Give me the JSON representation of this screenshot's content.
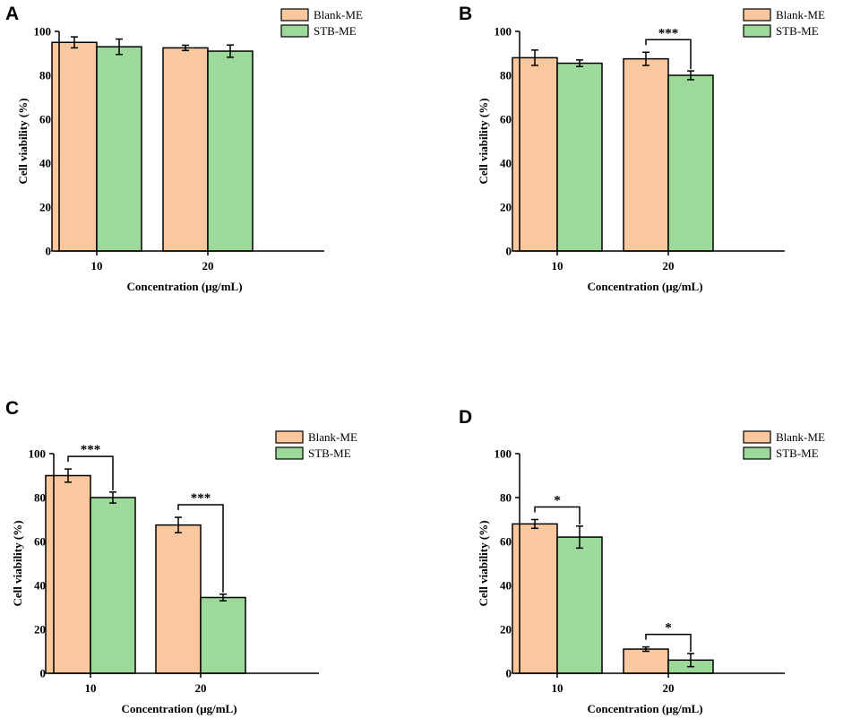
{
  "colors": {
    "blank": "#f9c89f",
    "stb": "#9ed99c",
    "stroke": "#000000"
  },
  "chart_data": [
    {
      "panel": "A",
      "type": "bar",
      "xlabel": "Concentration (μg/mL)",
      "ylabel": "Cell viability (%)",
      "ylim": [
        0,
        100
      ],
      "yticks": [
        "0",
        "20",
        "40",
        "60",
        "80",
        "100"
      ],
      "categories": [
        "10",
        "20"
      ],
      "series": [
        {
          "name": "Blank-ME",
          "values": [
            95,
            92.5
          ],
          "errors": [
            2.5,
            1.2
          ]
        },
        {
          "name": "STB-ME",
          "values": [
            93,
            91
          ],
          "errors": [
            3.5,
            2.8
          ]
        }
      ],
      "significance": []
    },
    {
      "panel": "B",
      "type": "bar",
      "xlabel": "Concentration (μg/mL)",
      "ylabel": "Cell viability (%)",
      "ylim": [
        0,
        100
      ],
      "yticks": [
        "0",
        "20",
        "40",
        "60",
        "80",
        "100"
      ],
      "categories": [
        "10",
        "20"
      ],
      "series": [
        {
          "name": "Blank-ME",
          "values": [
            88,
            87.5
          ],
          "errors": [
            3.5,
            3
          ]
        },
        {
          "name": "STB-ME",
          "values": [
            85.5,
            80
          ],
          "errors": [
            1.5,
            2
          ]
        }
      ],
      "significance": [
        {
          "category": 1,
          "label": "***"
        }
      ]
    },
    {
      "panel": "C",
      "type": "bar",
      "xlabel": "Concentration (μg/mL)",
      "ylabel": "Cell viability (%)",
      "ylim": [
        0,
        100
      ],
      "yticks": [
        "0",
        "20",
        "40",
        "60",
        "80",
        "100"
      ],
      "categories": [
        "10",
        "20"
      ],
      "series": [
        {
          "name": "Blank-ME",
          "values": [
            90,
            67.5
          ],
          "errors": [
            3,
            3.5
          ]
        },
        {
          "name": "STB-ME",
          "values": [
            80,
            34.5
          ],
          "errors": [
            2.5,
            1.5
          ]
        }
      ],
      "significance": [
        {
          "category": 0,
          "label": "***"
        },
        {
          "category": 1,
          "label": "***"
        }
      ]
    },
    {
      "panel": "D",
      "type": "bar",
      "xlabel": "Concentration (μg/mL)",
      "ylabel": "Cell viability (%)",
      "ylim": [
        0,
        100
      ],
      "yticks": [
        "0",
        "20",
        "40",
        "60",
        "80",
        "100"
      ],
      "categories": [
        "10",
        "20"
      ],
      "series": [
        {
          "name": "Blank-ME",
          "values": [
            68,
            11
          ],
          "errors": [
            2,
            1
          ]
        },
        {
          "name": "STB-ME",
          "values": [
            62,
            6
          ],
          "errors": [
            5,
            3
          ]
        }
      ],
      "significance": [
        {
          "category": 0,
          "label": "*"
        },
        {
          "category": 1,
          "label": "*"
        }
      ]
    }
  ]
}
